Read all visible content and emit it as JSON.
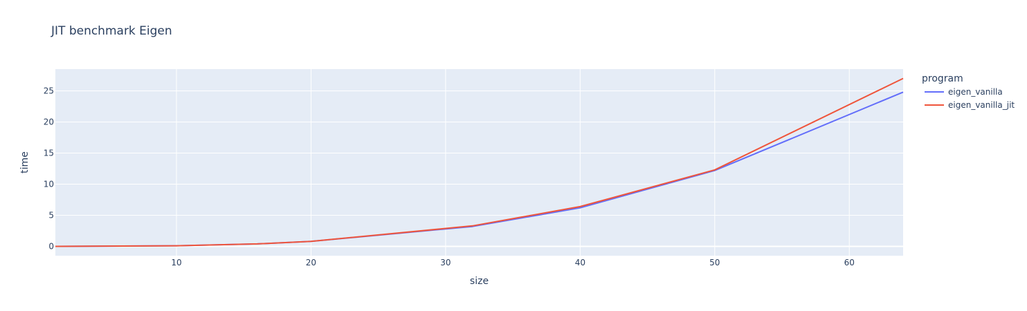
{
  "chart_data": {
    "type": "line",
    "title": "JIT benchmark Eigen",
    "xlabel": "size",
    "ylabel": "time",
    "xlim": [
      1,
      64
    ],
    "ylim": [
      -1.5,
      28.5
    ],
    "xticks": [
      10,
      20,
      30,
      40,
      50,
      60
    ],
    "yticks": [
      0,
      5,
      10,
      15,
      20,
      25
    ],
    "grid": true,
    "legend": {
      "title": "program",
      "placement": "top-right, outside plot"
    },
    "x": [
      1,
      10,
      16,
      20,
      32,
      40,
      50,
      64
    ],
    "series": [
      {
        "name": "eigen_vanilla",
        "color": "#636efa",
        "values": [
          0.0,
          0.1,
          0.4,
          0.8,
          3.2,
          6.2,
          12.2,
          24.8
        ]
      },
      {
        "name": "eigen_vanilla_jit",
        "color": "#ef553b",
        "values": [
          0.0,
          0.1,
          0.4,
          0.8,
          3.3,
          6.4,
          12.3,
          27.0
        ]
      }
    ],
    "colors": {
      "plot_bg": "#e5ecf6",
      "grid": "#ffffff",
      "text": "#2a3f5f"
    }
  }
}
